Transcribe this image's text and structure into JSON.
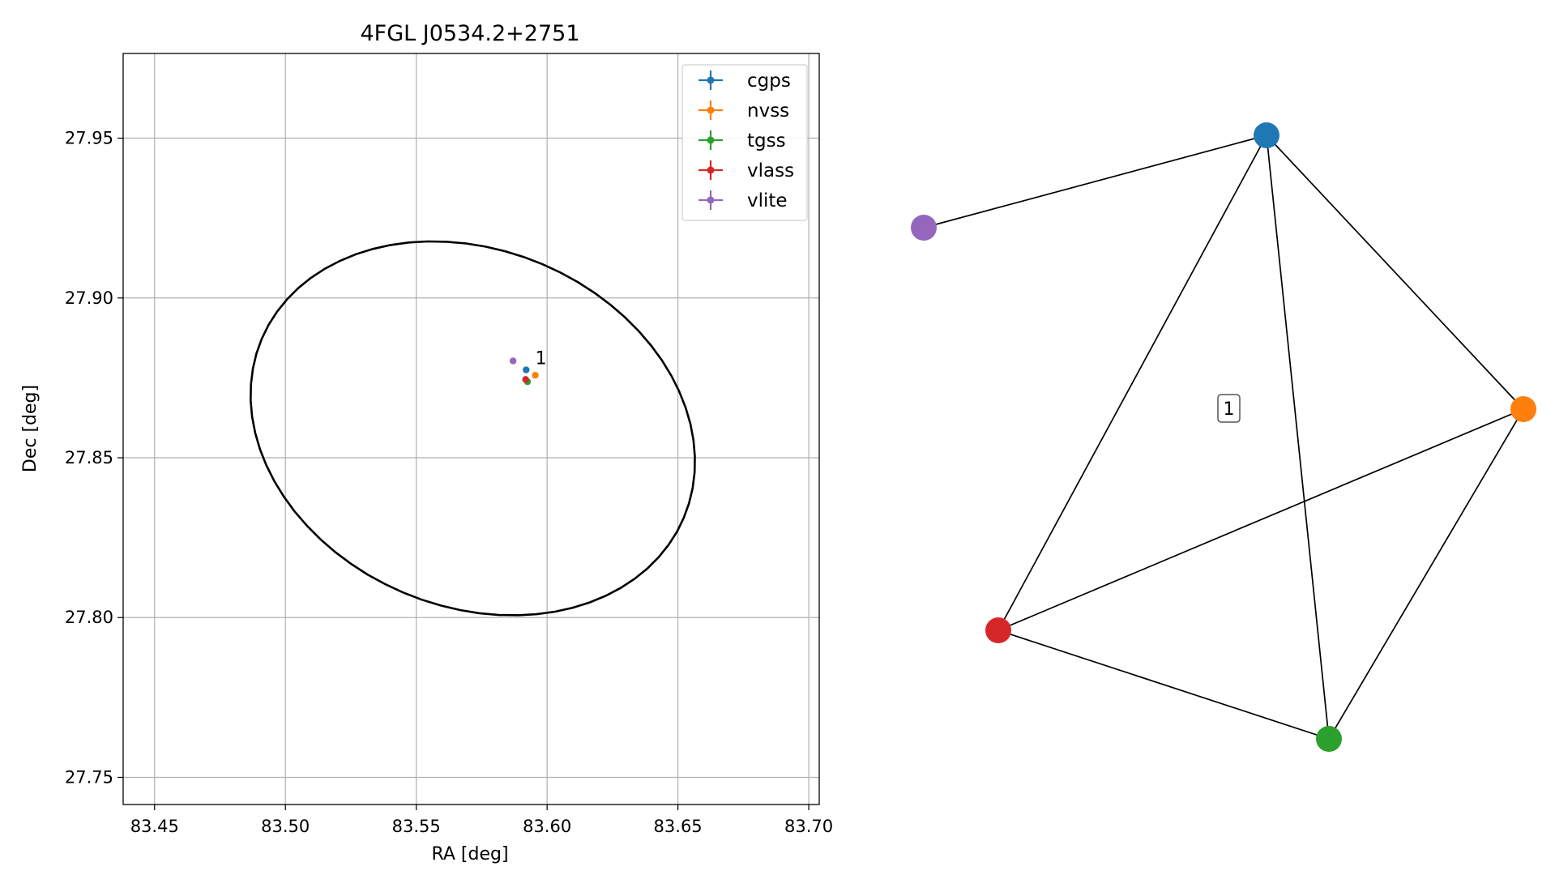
{
  "chart_data": [
    {
      "type": "scatter",
      "title": "4FGL J0534.2+2751",
      "xlabel": "RA [deg]",
      "ylabel": "Dec [deg]",
      "xlim": [
        83.438,
        83.704
      ],
      "ylim": [
        27.7415,
        27.9765
      ],
      "grid": true,
      "xticks": [
        83.45,
        83.5,
        83.55,
        83.6,
        83.65,
        83.7
      ],
      "xtick_labels": [
        "83.45",
        "83.50",
        "83.55",
        "83.60",
        "83.65",
        "83.70"
      ],
      "yticks": [
        27.75,
        27.8,
        27.85,
        27.9,
        27.95
      ],
      "ytick_labels": [
        "27.75",
        "27.80",
        "27.85",
        "27.90",
        "27.95"
      ],
      "legend_position": "top-right",
      "series": [
        {
          "name": "cgps",
          "color": "#1f77b4",
          "points": [
            {
              "x": 83.592,
              "y": 27.8775
            }
          ]
        },
        {
          "name": "nvss",
          "color": "#ff7f0e",
          "points": [
            {
              "x": 83.5955,
              "y": 27.8758
            }
          ]
        },
        {
          "name": "tgss",
          "color": "#2ca02c",
          "points": [
            {
              "x": 83.5925,
              "y": 27.8738
            }
          ]
        },
        {
          "name": "vlass",
          "color": "#d62728",
          "points": [
            {
              "x": 83.5918,
              "y": 27.8745
            }
          ]
        },
        {
          "name": "vlite",
          "color": "#9467bd",
          "points": [
            {
              "x": 83.587,
              "y": 27.8803
            }
          ]
        }
      ],
      "annotations": [
        {
          "text": "1",
          "x": 83.5955,
          "y": 27.881
        }
      ],
      "ellipse": {
        "center_ra": 83.5716,
        "center_dec": 27.8592,
        "a_ra": 0.0876,
        "b_dec": 0.0558,
        "angle_deg": -23,
        "color": "#000000"
      }
    },
    {
      "type": "network",
      "nodes": [
        {
          "id": "cgps",
          "color": "#1f77b4"
        },
        {
          "id": "nvss",
          "color": "#ff7f0e"
        },
        {
          "id": "tgss",
          "color": "#2ca02c"
        },
        {
          "id": "vlass",
          "color": "#d62728"
        },
        {
          "id": "vlite",
          "color": "#9467bd"
        }
      ],
      "edges": [
        [
          "cgps",
          "vlite"
        ],
        [
          "cgps",
          "vlass"
        ],
        [
          "cgps",
          "tgss"
        ],
        [
          "cgps",
          "nvss"
        ],
        [
          "nvss",
          "vlass"
        ],
        [
          "nvss",
          "tgss"
        ],
        [
          "vlass",
          "tgss"
        ]
      ],
      "group_label": "1"
    }
  ]
}
